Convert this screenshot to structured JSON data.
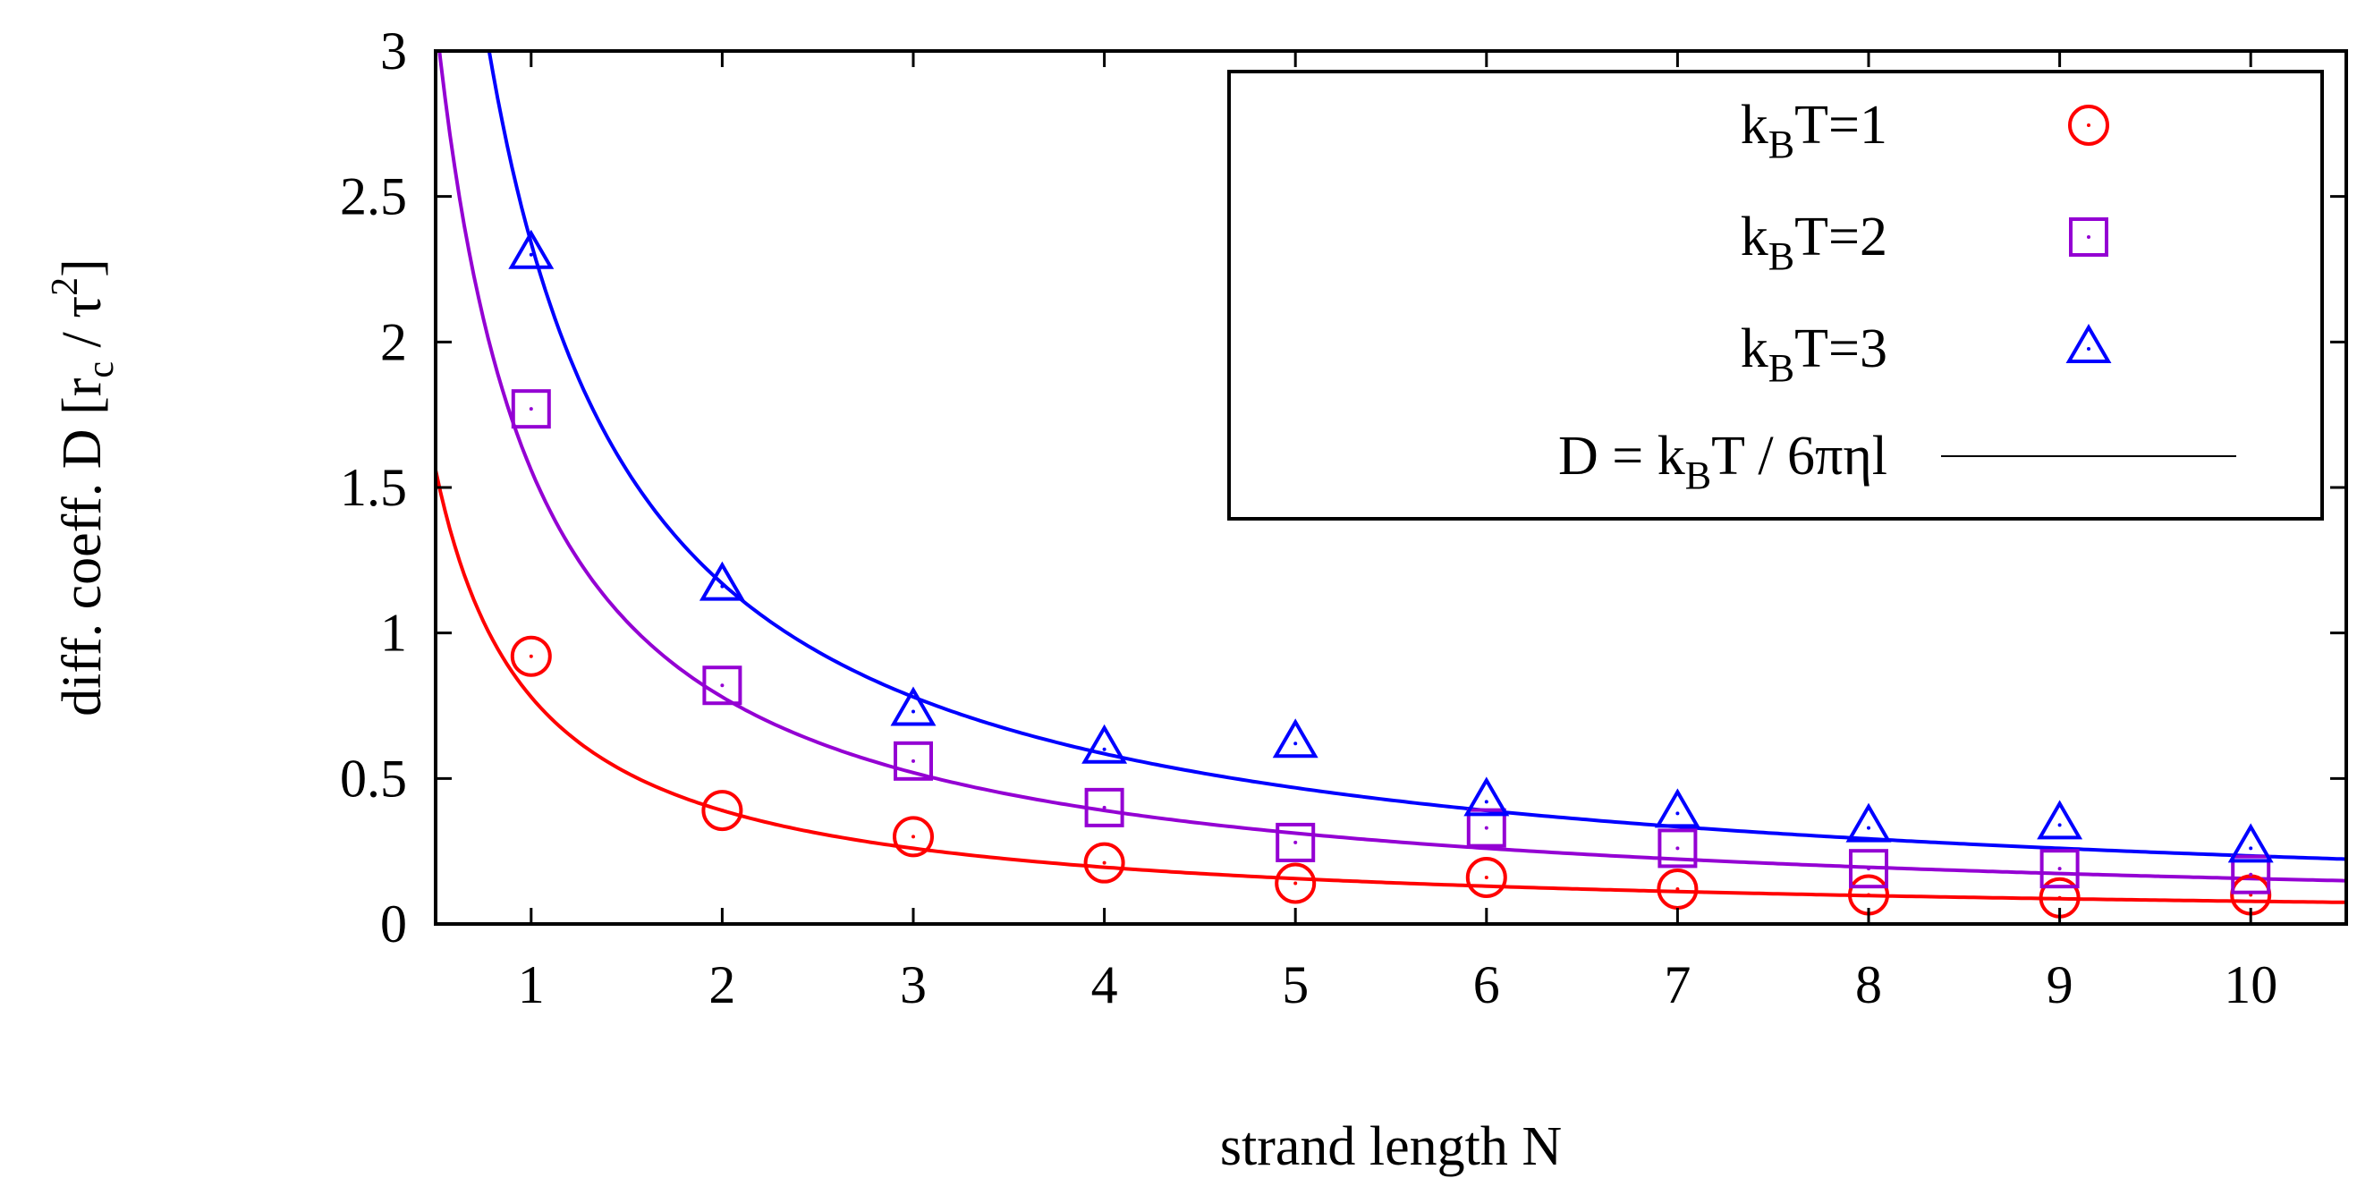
{
  "chart_data": {
    "type": "scatter",
    "xlabel": "strand length  N",
    "ylabel": "diff. coeff.  D  [r_c / τ²]",
    "ylabel_parts": {
      "main": "diff. coeff.  D  [r",
      "sub": "c",
      "mid": " / τ",
      "sup": "2",
      "end": "]"
    },
    "xlim": [
      0.5,
      10.5
    ],
    "ylim": [
      0,
      3
    ],
    "x_ticks": [
      1,
      2,
      3,
      4,
      5,
      6,
      7,
      8,
      9,
      10
    ],
    "y_ticks": [
      0,
      0.5,
      1,
      1.5,
      2,
      2.5,
      3
    ],
    "y_tick_labels": [
      "0",
      "0.5",
      "1",
      "1.5",
      "2",
      "2.5",
      "3"
    ],
    "legend_position": "top-right",
    "series": [
      {
        "name": "kBT=1",
        "label_parts": {
          "pre": "k",
          "sub": "B",
          "post": "T=1"
        },
        "marker": "circle",
        "color": "#ff0000",
        "x": [
          1,
          2,
          3,
          4,
          5,
          6,
          7,
          8,
          9,
          10
        ],
        "y": [
          0.92,
          0.39,
          0.3,
          0.21,
          0.14,
          0.16,
          0.12,
          0.1,
          0.09,
          0.1
        ]
      },
      {
        "name": "kBT=2",
        "label_parts": {
          "pre": "k",
          "sub": "B",
          "post": "T=2"
        },
        "marker": "square",
        "color": "#9400d3",
        "x": [
          1,
          2,
          3,
          4,
          5,
          6,
          7,
          8,
          9,
          10
        ],
        "y": [
          1.77,
          0.82,
          0.56,
          0.4,
          0.28,
          0.33,
          0.26,
          0.19,
          0.19,
          0.17
        ]
      },
      {
        "name": "kBT=3",
        "label_parts": {
          "pre": "k",
          "sub": "B",
          "post": "T=3"
        },
        "marker": "triangle",
        "color": "#0000ff",
        "x": [
          1,
          2,
          3,
          4,
          5,
          6,
          7,
          8,
          9,
          10
        ],
        "y": [
          2.3,
          1.16,
          0.73,
          0.6,
          0.62,
          0.42,
          0.38,
          0.33,
          0.34,
          0.26
        ]
      }
    ],
    "fit": {
      "name": "D = kBT / 6πηl",
      "label_parts": {
        "pre": "D = k",
        "sub": "B",
        "post": "T / 6πηl"
      },
      "line_color": "#000000",
      "formula": "D = A·kBT / N",
      "A": 0.78,
      "curves": [
        {
          "kBT": 1,
          "color": "#ff0000"
        },
        {
          "kBT": 2,
          "color": "#9400d3"
        },
        {
          "kBT": 3,
          "color": "#0000ff"
        }
      ]
    }
  }
}
